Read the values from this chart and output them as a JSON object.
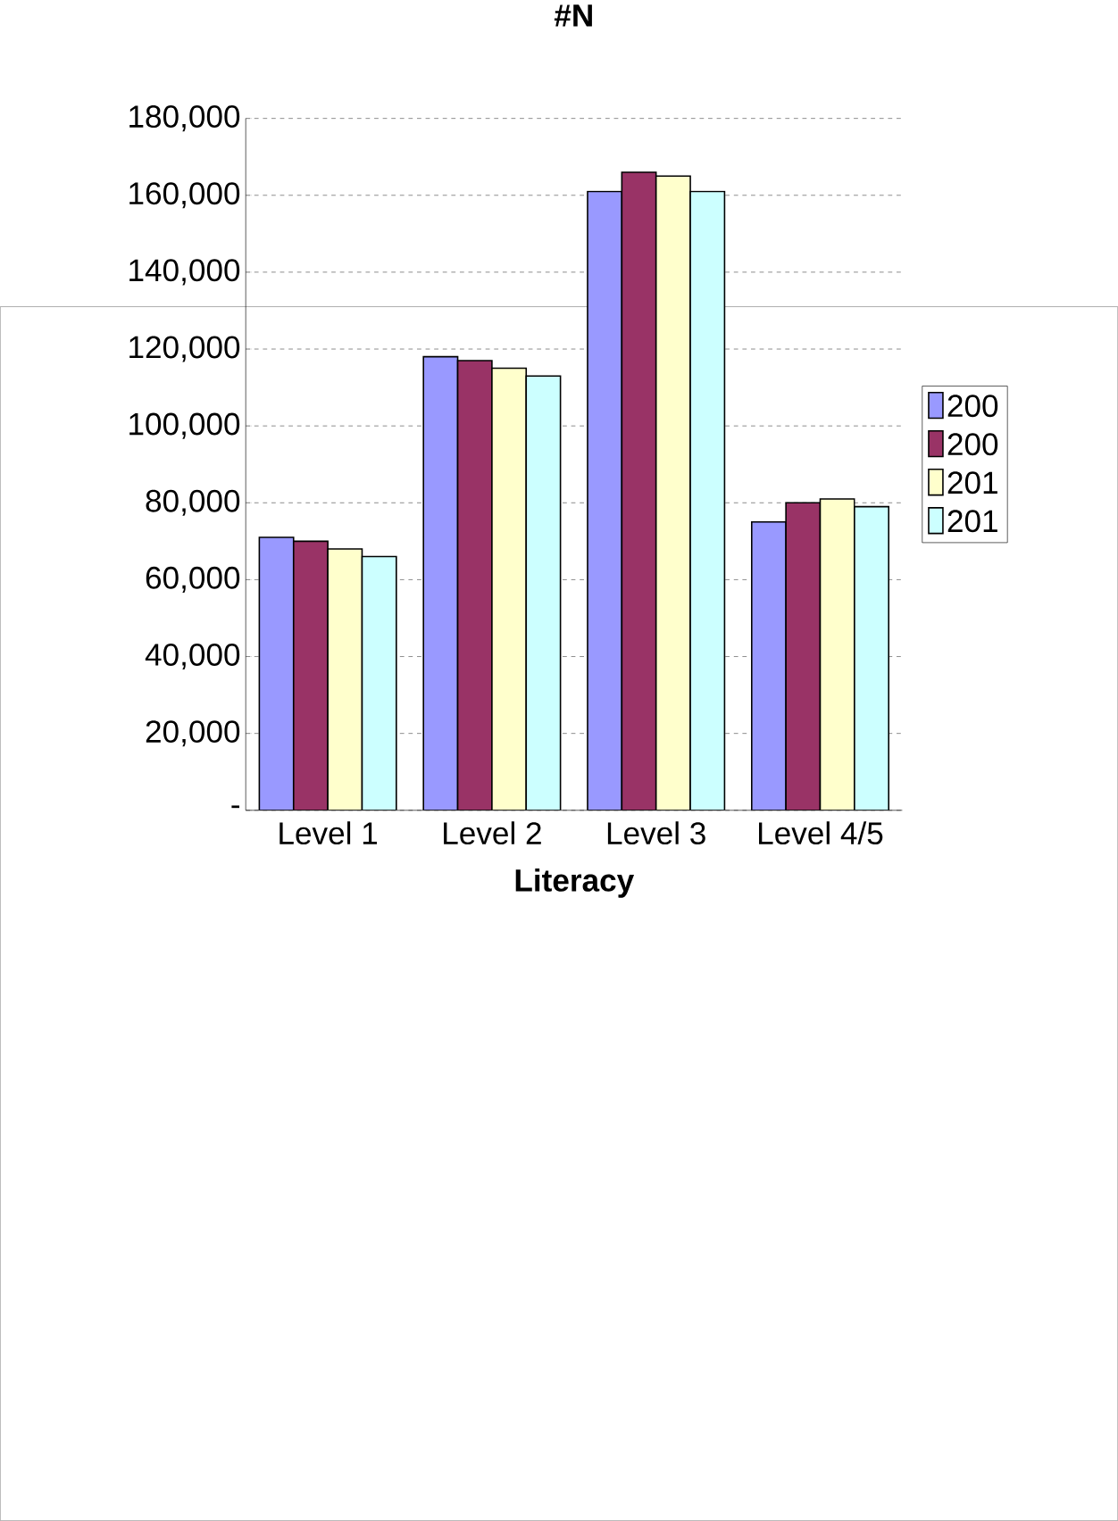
{
  "chart_data": {
    "type": "bar",
    "title": "#N",
    "xlabel": "Literacy",
    "categories": [
      "Level 1",
      "Level 2",
      "Level 3",
      "Level 4/5"
    ],
    "series": [
      {
        "name": "200",
        "color": "#9999ff",
        "values": [
          71000,
          118000,
          161000,
          75000
        ]
      },
      {
        "name": "200",
        "color": "#993366",
        "values": [
          70000,
          117000,
          166000,
          80000
        ]
      },
      {
        "name": "201",
        "color": "#ffffcc",
        "values": [
          68000,
          115000,
          165000,
          81000
        ]
      },
      {
        "name": "201",
        "color": "#ccffff",
        "values": [
          66000,
          113000,
          161000,
          79000
        ]
      }
    ],
    "ylim": [
      0,
      180000
    ],
    "yticks": [
      {
        "value": 0,
        "label": "-"
      },
      {
        "value": 20000,
        "label": "20,000"
      },
      {
        "value": 40000,
        "label": "40,000"
      },
      {
        "value": 60000,
        "label": "60,000"
      },
      {
        "value": 80000,
        "label": "80,000"
      },
      {
        "value": 100000,
        "label": "100,000"
      },
      {
        "value": 120000,
        "label": "120,000"
      },
      {
        "value": 140000,
        "label": "140,000"
      },
      {
        "value": 160000,
        "label": "160,000"
      },
      {
        "value": 180000,
        "label": "180,000"
      }
    ],
    "grid": "y",
    "legend": "right"
  }
}
